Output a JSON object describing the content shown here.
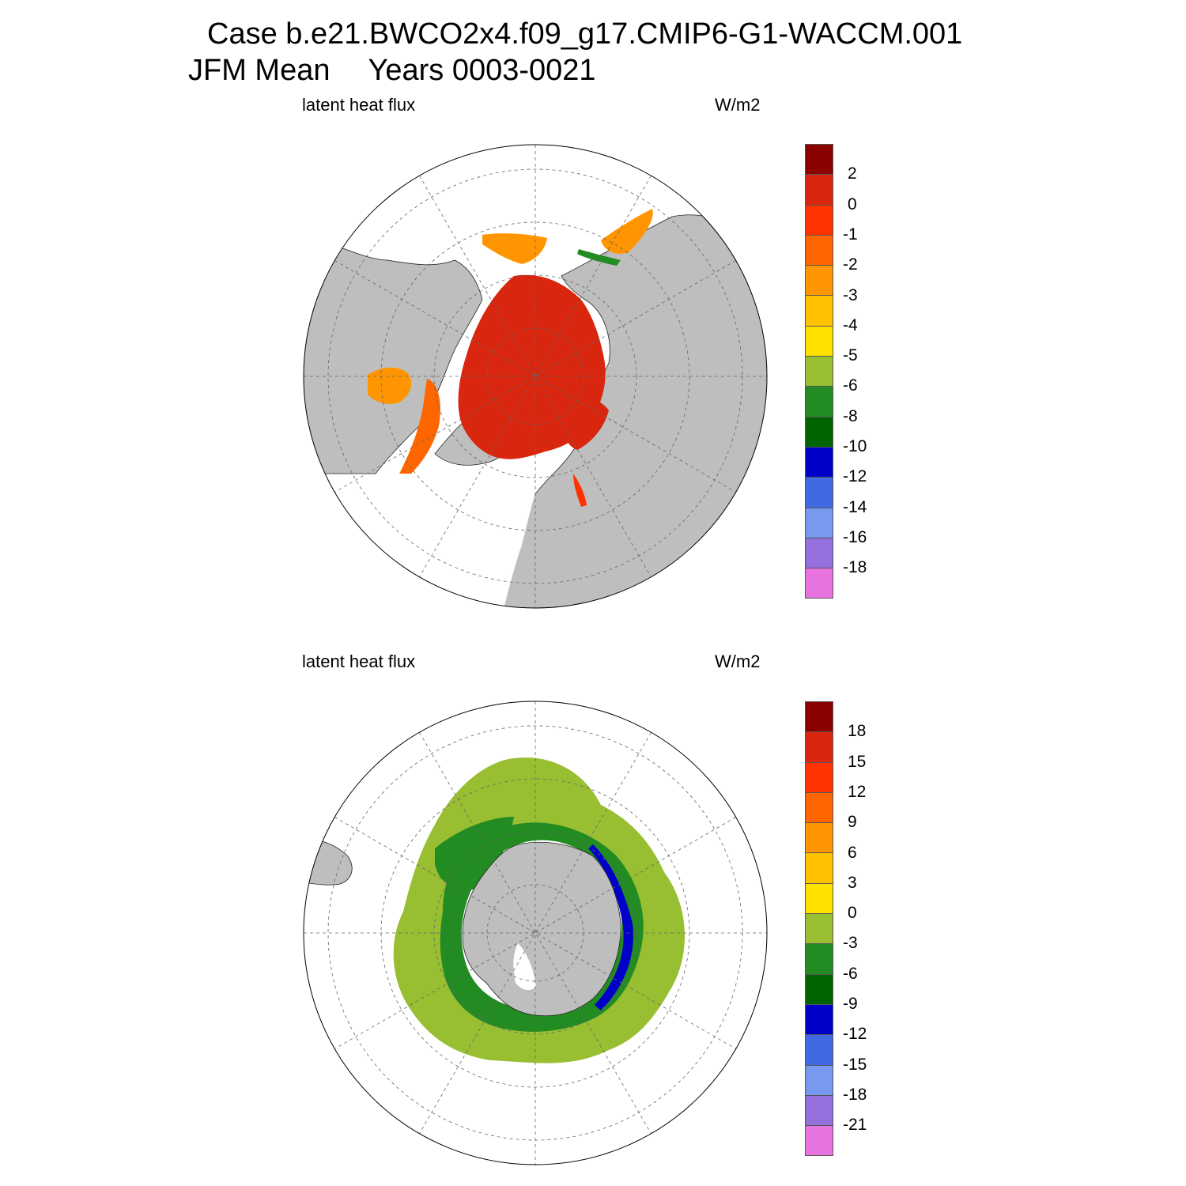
{
  "title": {
    "case": "Case b.e21.BWCO2x4.f09_g17.CMIP6-G1-WACCM.001",
    "season": "JFM Mean",
    "years": "Years 0003-0021"
  },
  "colors": {
    "land": "#bebebe",
    "ocean": "#ffffff",
    "grid": "#666666"
  },
  "palette": [
    "#8b0000",
    "#d9260e",
    "#ff3300",
    "#ff6600",
    "#ff9500",
    "#ffc200",
    "#ffe100",
    "#98bf32",
    "#228b22",
    "#006400",
    "#0000c8",
    "#4169e1",
    "#7799f0",
    "#9370db",
    "#e673e0"
  ],
  "panels": [
    {
      "id": "nh",
      "hemisphere": "north",
      "variable_label": "latent heat flux",
      "units_label": "W/m2",
      "colorbar_labels": [
        "2",
        "0",
        "-1",
        "-2",
        "-3",
        "-4",
        "-5",
        "-6",
        "-8",
        "-10",
        "-12",
        "-14",
        "-16",
        "-18"
      ]
    },
    {
      "id": "sh",
      "hemisphere": "south",
      "variable_label": "latent heat flux",
      "units_label": "W/m2",
      "colorbar_labels": [
        "18",
        "15",
        "12",
        "9",
        "6",
        "3",
        "0",
        "-3",
        "-6",
        "-9",
        "-12",
        "-15",
        "-18",
        "-21"
      ]
    }
  ]
}
